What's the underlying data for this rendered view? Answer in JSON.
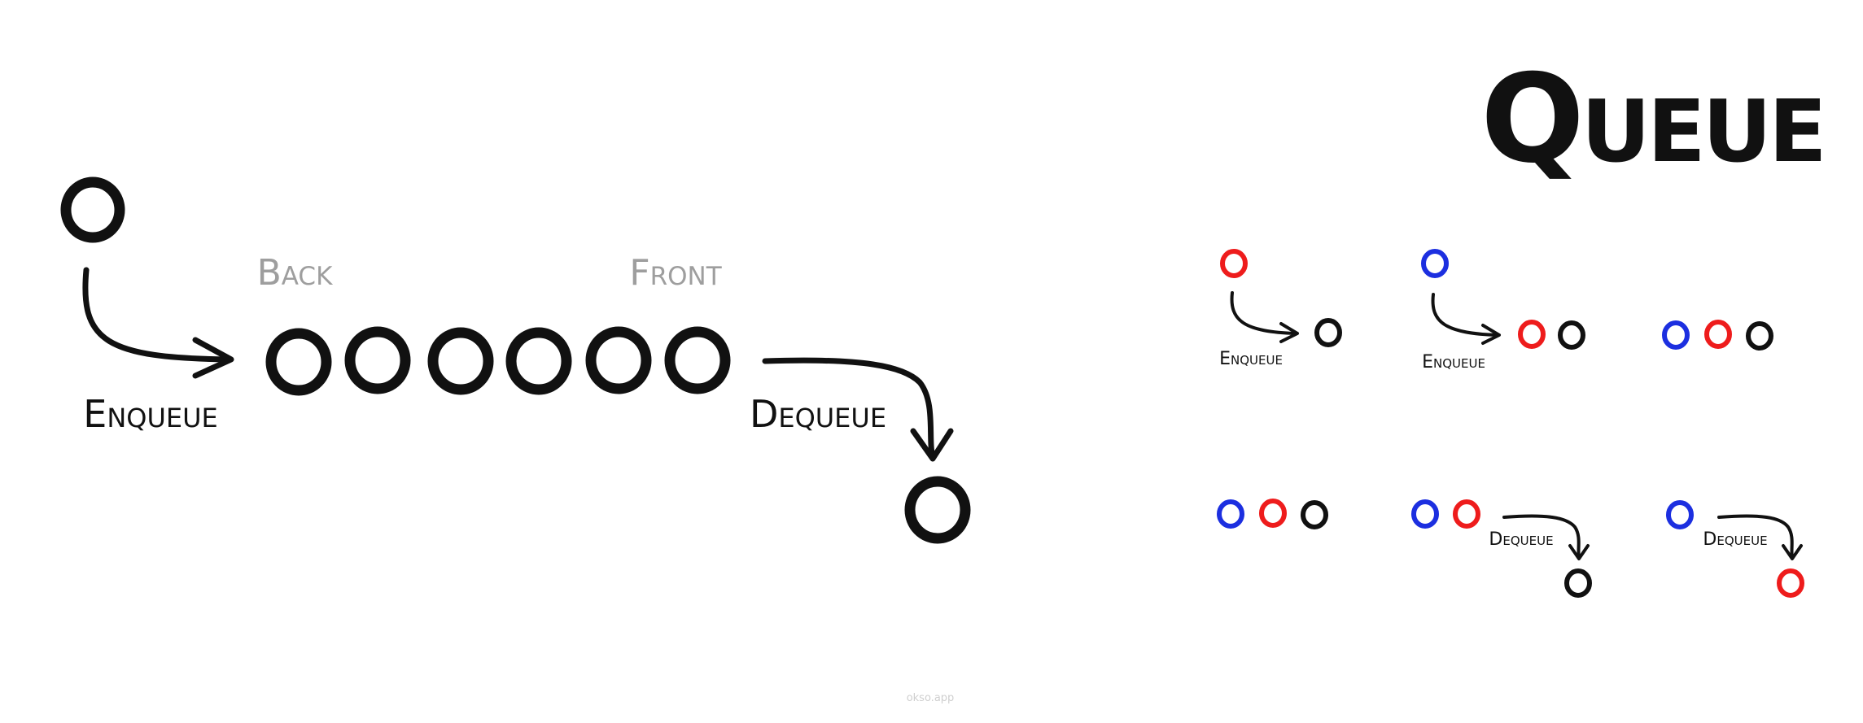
{
  "title": "Queue",
  "main": {
    "back_label": "Back",
    "front_label": "Front",
    "enqueue_label": "Enqueue",
    "dequeue_label": "Dequeue",
    "queue_length": 6
  },
  "steps": {
    "step1_label": "Enqueue",
    "step2_label": "Enqueue",
    "step5_label": "Dequeue",
    "step6_label": "Dequeue"
  },
  "colors": {
    "ink": "#111111",
    "muted": "#9e9e9e",
    "red": "#ee1c1c",
    "blue": "#1c2fe0",
    "watermark": "#cfcfcf"
  },
  "footer": {
    "watermark": "okso.app"
  }
}
